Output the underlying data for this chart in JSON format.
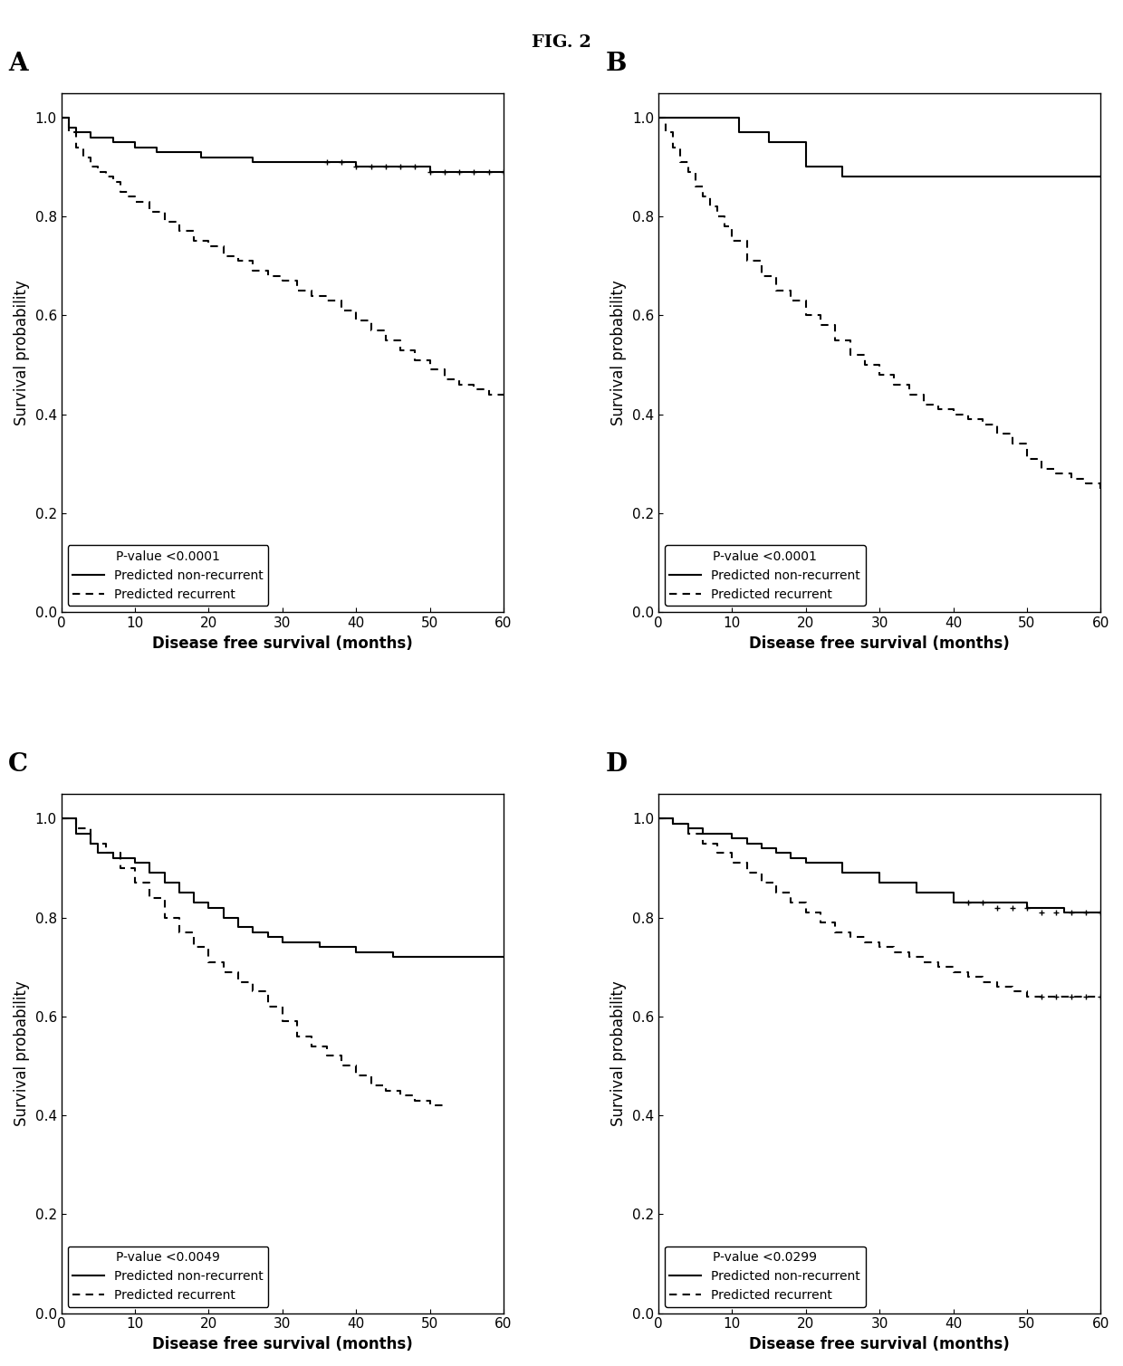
{
  "title": "FIG. 2",
  "panels": [
    "A",
    "B",
    "C",
    "D"
  ],
  "xlabel": "Disease free survival (months)",
  "ylabel": "Survival probability",
  "xlim": [
    0,
    60
  ],
  "ylim": [
    0.0,
    1.0
  ],
  "yticks": [
    0.0,
    0.2,
    0.4,
    0.6,
    0.8,
    1.0
  ],
  "xticks": [
    0,
    10,
    20,
    30,
    40,
    50,
    60
  ],
  "p_values": [
    "P-value <0.0001",
    "P-value <0.0001",
    "P-value <0.0049",
    "P-value <0.0299"
  ],
  "panel_A_nonrec": {
    "x": [
      0,
      1,
      2,
      3,
      4,
      5,
      6,
      7,
      8,
      9,
      10,
      11,
      12,
      13,
      14,
      15,
      16,
      17,
      18,
      19,
      20,
      22,
      24,
      26,
      28,
      30,
      32,
      34,
      36,
      38,
      40,
      42,
      44,
      46,
      48,
      50,
      52,
      54,
      56,
      58,
      60
    ],
    "y": [
      1.0,
      0.98,
      0.97,
      0.97,
      0.96,
      0.96,
      0.96,
      0.95,
      0.95,
      0.95,
      0.94,
      0.94,
      0.94,
      0.93,
      0.93,
      0.93,
      0.93,
      0.93,
      0.93,
      0.92,
      0.92,
      0.92,
      0.92,
      0.91,
      0.91,
      0.91,
      0.91,
      0.91,
      0.91,
      0.91,
      0.9,
      0.9,
      0.9,
      0.9,
      0.9,
      0.89,
      0.89,
      0.89,
      0.89,
      0.89,
      0.89
    ]
  },
  "panel_A_rec": {
    "x": [
      0,
      1,
      2,
      3,
      4,
      5,
      6,
      7,
      8,
      9,
      10,
      12,
      14,
      16,
      18,
      20,
      22,
      24,
      26,
      28,
      30,
      32,
      34,
      36,
      38,
      40,
      42,
      44,
      46,
      48,
      50,
      52,
      54,
      56,
      58,
      60
    ],
    "y": [
      1.0,
      0.97,
      0.94,
      0.92,
      0.9,
      0.89,
      0.88,
      0.87,
      0.85,
      0.84,
      0.83,
      0.81,
      0.79,
      0.77,
      0.75,
      0.74,
      0.72,
      0.71,
      0.69,
      0.68,
      0.67,
      0.65,
      0.64,
      0.63,
      0.61,
      0.59,
      0.57,
      0.55,
      0.53,
      0.51,
      0.49,
      0.47,
      0.46,
      0.45,
      0.44,
      0.44
    ]
  },
  "panel_B_nonrec": {
    "x": [
      0,
      2,
      10,
      11,
      15,
      20,
      25,
      30,
      40,
      50,
      60
    ],
    "y": [
      1.0,
      1.0,
      1.0,
      0.97,
      0.95,
      0.9,
      0.88,
      0.88,
      0.88,
      0.88,
      0.88
    ]
  },
  "panel_B_rec": {
    "x": [
      0,
      1,
      2,
      3,
      4,
      5,
      6,
      7,
      8,
      9,
      10,
      12,
      14,
      16,
      18,
      20,
      22,
      24,
      26,
      28,
      30,
      32,
      34,
      36,
      38,
      40,
      42,
      44,
      46,
      48,
      50,
      52,
      54,
      56,
      58,
      60
    ],
    "y": [
      1.0,
      0.97,
      0.94,
      0.91,
      0.89,
      0.86,
      0.84,
      0.82,
      0.8,
      0.78,
      0.75,
      0.71,
      0.68,
      0.65,
      0.63,
      0.6,
      0.58,
      0.55,
      0.52,
      0.5,
      0.48,
      0.46,
      0.44,
      0.42,
      0.41,
      0.4,
      0.39,
      0.38,
      0.36,
      0.34,
      0.31,
      0.29,
      0.28,
      0.27,
      0.26,
      0.25
    ]
  },
  "panel_C_nonrec": {
    "x": [
      0,
      2,
      4,
      5,
      7,
      10,
      12,
      14,
      16,
      18,
      20,
      22,
      24,
      26,
      28,
      30,
      35,
      40,
      45,
      50,
      55,
      60
    ],
    "y": [
      1.0,
      0.97,
      0.95,
      0.93,
      0.92,
      0.91,
      0.89,
      0.87,
      0.85,
      0.83,
      0.82,
      0.8,
      0.78,
      0.77,
      0.76,
      0.75,
      0.74,
      0.73,
      0.72,
      0.72,
      0.72,
      0.72
    ]
  },
  "panel_C_rec": {
    "x": [
      0,
      2,
      4,
      6,
      8,
      10,
      12,
      14,
      16,
      18,
      20,
      22,
      24,
      26,
      28,
      30,
      32,
      34,
      36,
      38,
      40,
      42,
      44,
      46,
      48,
      50,
      52
    ],
    "y": [
      1.0,
      0.98,
      0.95,
      0.93,
      0.9,
      0.87,
      0.84,
      0.8,
      0.77,
      0.74,
      0.71,
      0.69,
      0.67,
      0.65,
      0.62,
      0.59,
      0.56,
      0.54,
      0.52,
      0.5,
      0.48,
      0.46,
      0.45,
      0.44,
      0.43,
      0.42,
      0.42
    ]
  },
  "panel_D_nonrec": {
    "x": [
      0,
      2,
      4,
      6,
      8,
      10,
      12,
      14,
      16,
      18,
      20,
      25,
      30,
      35,
      40,
      45,
      50,
      55,
      60
    ],
    "y": [
      1.0,
      0.99,
      0.98,
      0.97,
      0.97,
      0.96,
      0.95,
      0.94,
      0.93,
      0.92,
      0.91,
      0.89,
      0.87,
      0.85,
      0.83,
      0.83,
      0.82,
      0.81,
      0.81
    ]
  },
  "panel_D_rec": {
    "x": [
      0,
      2,
      4,
      6,
      8,
      10,
      12,
      14,
      16,
      18,
      20,
      22,
      24,
      26,
      28,
      30,
      32,
      34,
      36,
      38,
      40,
      42,
      44,
      46,
      48,
      50,
      52,
      54,
      56,
      58,
      60
    ],
    "y": [
      1.0,
      0.99,
      0.97,
      0.95,
      0.93,
      0.91,
      0.89,
      0.87,
      0.85,
      0.83,
      0.81,
      0.79,
      0.77,
      0.76,
      0.75,
      0.74,
      0.73,
      0.72,
      0.71,
      0.7,
      0.69,
      0.68,
      0.67,
      0.66,
      0.65,
      0.64,
      0.64,
      0.64,
      0.64,
      0.64,
      0.64
    ]
  },
  "background_color": "#ffffff",
  "line_color": "#000000",
  "tick_label_size": 11,
  "axis_label_size": 12,
  "legend_fontsize": 10,
  "panel_label_fontsize": 20,
  "title_fontsize": 14
}
